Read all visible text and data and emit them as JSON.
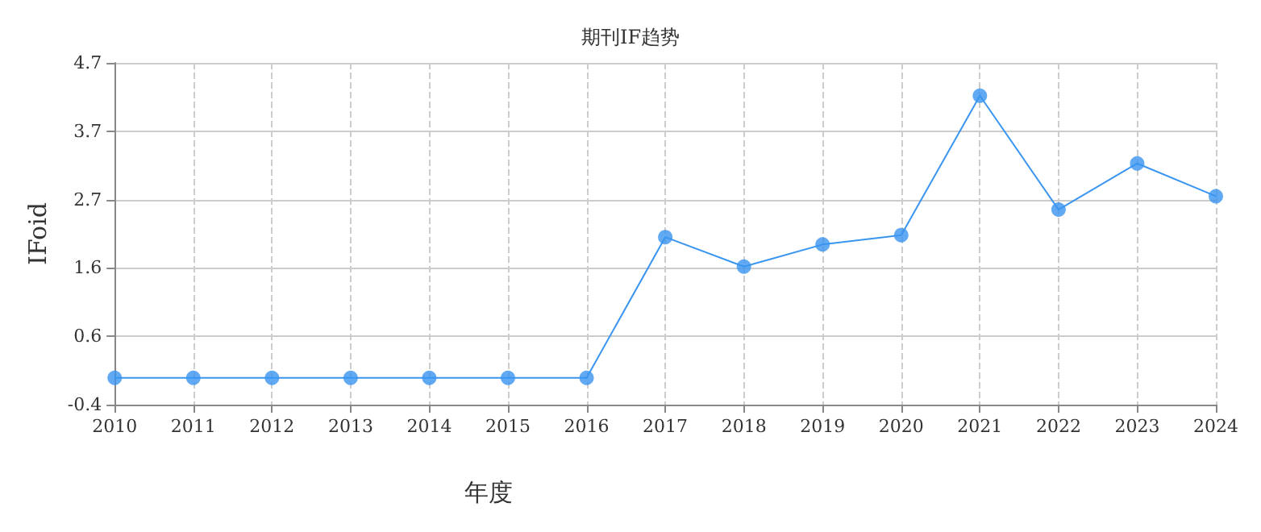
{
  "chart_data": {
    "type": "line",
    "title": "期刊IF趋势",
    "xlabel": "年度",
    "ylabel": "IFoid",
    "categories": [
      "2010",
      "2011",
      "2012",
      "2013",
      "2014",
      "2015",
      "2016",
      "2017",
      "2018",
      "2019",
      "2020",
      "2021",
      "2022",
      "2023",
      "2024"
    ],
    "series": [
      {
        "color": "#3a95f0",
        "values": [
          0,
          0,
          0,
          0,
          0,
          0,
          0,
          2.1,
          1.66,
          1.99,
          2.13,
          4.21,
          2.51,
          3.2,
          2.71
        ]
      }
    ],
    "ylim": [
      -0.4,
      4.7
    ],
    "yticks": [
      {
        "value": -0.4,
        "label": "-0.4"
      },
      {
        "value": 0.62,
        "label": "0.6"
      },
      {
        "value": 1.64,
        "label": "1.6"
      },
      {
        "value": 2.66,
        "label": "2.7"
      },
      {
        "value": 3.68,
        "label": "3.7"
      },
      {
        "value": 4.7,
        "label": "4.7"
      }
    ],
    "grid": true,
    "marker": "circle",
    "line_style": "solid"
  }
}
